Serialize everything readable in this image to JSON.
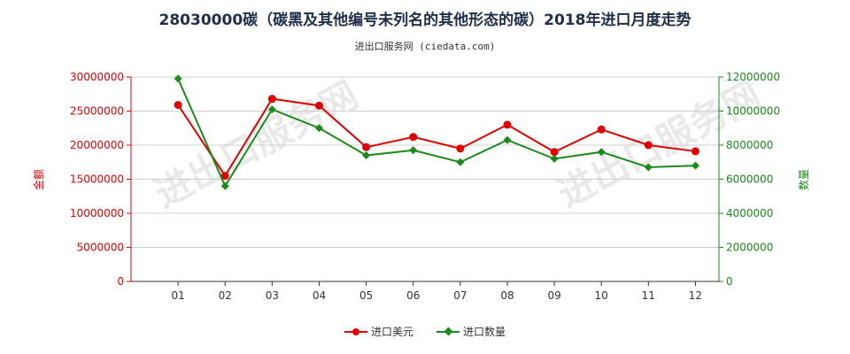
{
  "chart_data": {
    "type": "line",
    "title": "28030000碳（碳黑及其他编号未列名的其他形态的碳）2018年进口月度走势",
    "subtitle": "进出口服务网 (ciedata.com)",
    "watermark": "进出口服务网",
    "categories": [
      "01",
      "02",
      "03",
      "04",
      "05",
      "06",
      "07",
      "08",
      "09",
      "10",
      "11",
      "12"
    ],
    "y_left": {
      "label": "金额",
      "ticks": [
        "0",
        "5000000",
        "10000000",
        "15000000",
        "20000000",
        "25000000",
        "30000000"
      ],
      "ylim": [
        0,
        30000000
      ],
      "color": "#e00000"
    },
    "y_right": {
      "label": "数量",
      "ticks": [
        "0",
        "2000000",
        "4000000",
        "6000000",
        "8000000",
        "10000000",
        "12000000"
      ],
      "ylim": [
        0,
        12000000
      ],
      "color": "#1a8a1a"
    },
    "series": [
      {
        "name": "进口美元",
        "axis": "left",
        "marker": "circle",
        "color": "#e00000",
        "values": [
          25900000,
          15500000,
          26800000,
          25800000,
          19700000,
          21200000,
          19500000,
          23000000,
          19000000,
          22300000,
          20000000,
          19100000
        ]
      },
      {
        "name": "进口数量",
        "axis": "right",
        "marker": "diamond",
        "color": "#1a8a1a",
        "values": [
          11900000,
          5600000,
          10100000,
          9000000,
          7400000,
          7700000,
          7000000,
          8300000,
          7200000,
          7600000,
          6700000,
          6800000
        ]
      }
    ],
    "grid": true,
    "legend_position": "bottom"
  }
}
